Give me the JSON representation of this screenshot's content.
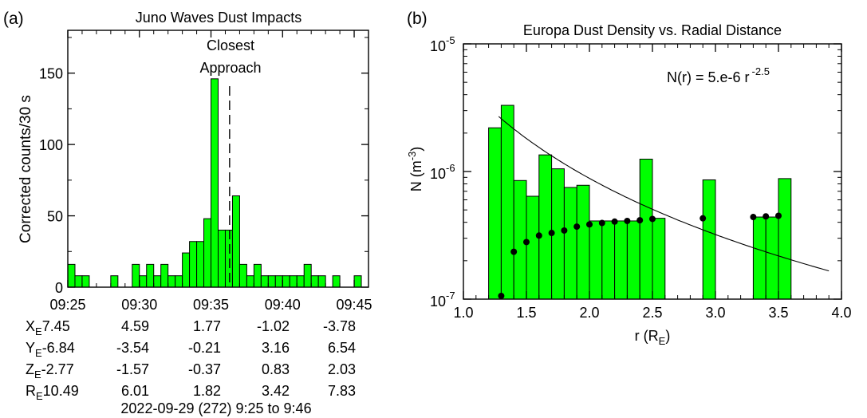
{
  "chart_data": [
    {
      "panel_label": "(a)",
      "type": "bar",
      "title": "Juno Waves Dust Impacts",
      "ylabel": "Corrected counts/30 s",
      "ylim": [
        0,
        180
      ],
      "yticks": [
        0,
        50,
        100,
        150
      ],
      "xlim_minutes": [
        25,
        46
      ],
      "xtick_labels": [
        "09:25",
        "09:30",
        "09:35",
        "09:40",
        "09:45"
      ],
      "bin_width_minutes": 0.5,
      "values": [
        16,
        8,
        8,
        0,
        0,
        0,
        8,
        0,
        0,
        16,
        8,
        16,
        8,
        16,
        8,
        8,
        24,
        32,
        32,
        48,
        146,
        40,
        40,
        64,
        16,
        8,
        16,
        8,
        8,
        8,
        8,
        8,
        8,
        16,
        8,
        8,
        0,
        8,
        0,
        0,
        8,
        0
      ],
      "closest_approach": {
        "label_line1": "Closest",
        "label_line2": "Approach",
        "minute": 36.3
      },
      "geometry_table": {
        "rows": [
          {
            "label": "X",
            "sub": "E",
            "values": [
              "7.45",
              "4.59",
              "1.77",
              "-1.02",
              "-3.78"
            ]
          },
          {
            "label": "Y",
            "sub": "E",
            "values": [
              "-6.84",
              "-3.54",
              "-0.21",
              "3.16",
              "6.54"
            ]
          },
          {
            "label": "Z",
            "sub": "E",
            "values": [
              "-2.77",
              "-1.57",
              "-0.37",
              "0.83",
              "2.03"
            ]
          },
          {
            "label": "R",
            "sub": "E",
            "values": [
              "10.49",
              "6.01",
              "1.82",
              "3.42",
              "7.83"
            ]
          }
        ]
      },
      "footer": "2022-09-29 (272) 9:25 to 9:46",
      "bar_color": "#00ff00"
    },
    {
      "panel_label": "(b)",
      "type": "bar",
      "title": "Europa Dust Density vs. Radial Distance",
      "xlabel_main": "r (R",
      "xlabel_sub": "E",
      "xlabel_close": ")",
      "ylabel_main": "N (m",
      "ylabel_sup": "-3",
      "ylabel_close": ")",
      "xlim": [
        1.0,
        4.0
      ],
      "xticks": [
        "1.0",
        "1.5",
        "2.0",
        "2.5",
        "3.0",
        "3.5",
        "4.0"
      ],
      "ylim": [
        1e-07,
        1e-05
      ],
      "y_scale": "log",
      "ytick_base": "10",
      "ytick_exps": [
        "-7",
        "-6",
        "-5"
      ],
      "bin_width": 0.1,
      "bars": [
        {
          "x": 1.25,
          "y": 2.2e-06
        },
        {
          "x": 1.35,
          "y": 3.3e-06
        },
        {
          "x": 1.45,
          "y": 8.5e-07
        },
        {
          "x": 1.55,
          "y": 6.4e-07
        },
        {
          "x": 1.65,
          "y": 1.35e-06
        },
        {
          "x": 1.75,
          "y": 1.05e-06
        },
        {
          "x": 1.85,
          "y": 7.5e-07
        },
        {
          "x": 1.95,
          "y": 7.8e-07
        },
        {
          "x": 2.05,
          "y": 4.1e-07
        },
        {
          "x": 2.15,
          "y": 4.1e-07
        },
        {
          "x": 2.25,
          "y": 4.1e-07
        },
        {
          "x": 2.35,
          "y": 4.1e-07
        },
        {
          "x": 2.45,
          "y": 1.25e-06
        },
        {
          "x": 2.55,
          "y": 4.3e-07
        },
        {
          "x": 2.95,
          "y": 8.6e-07
        },
        {
          "x": 3.35,
          "y": 4.4e-07
        },
        {
          "x": 3.45,
          "y": 4.4e-07
        },
        {
          "x": 3.55,
          "y": 8.8e-07
        }
      ],
      "dots": [
        {
          "x": 1.3,
          "y": 1.06e-07
        },
        {
          "x": 1.4,
          "y": 2.35e-07
        },
        {
          "x": 1.5,
          "y": 2.8e-07
        },
        {
          "x": 1.6,
          "y": 3.15e-07
        },
        {
          "x": 1.7,
          "y": 3.3e-07
        },
        {
          "x": 1.8,
          "y": 3.45e-07
        },
        {
          "x": 1.9,
          "y": 3.7e-07
        },
        {
          "x": 2.0,
          "y": 3.85e-07
        },
        {
          "x": 2.1,
          "y": 3.95e-07
        },
        {
          "x": 2.2,
          "y": 4.05e-07
        },
        {
          "x": 2.3,
          "y": 4.1e-07
        },
        {
          "x": 2.4,
          "y": 4.15e-07
        },
        {
          "x": 2.5,
          "y": 4.25e-07
        },
        {
          "x": 2.9,
          "y": 4.3e-07
        },
        {
          "x": 3.3,
          "y": 4.4e-07
        },
        {
          "x": 3.4,
          "y": 4.45e-07
        },
        {
          "x": 3.5,
          "y": 4.5e-07
        }
      ],
      "fit": {
        "coef": 5e-06,
        "exponent": -2.5,
        "label_main": "N(r) = 5.e-6 r",
        "label_sup": "-2.5"
      },
      "bar_color": "#00ff00"
    }
  ]
}
